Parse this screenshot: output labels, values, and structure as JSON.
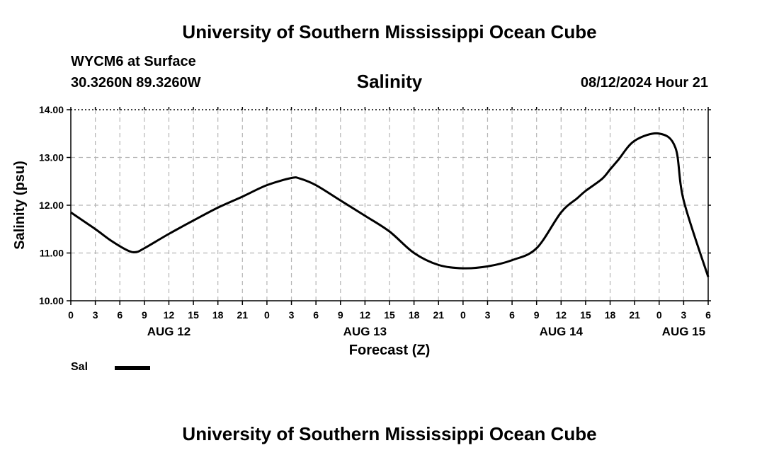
{
  "header": {
    "title_top": "University of Southern Mississippi Ocean Cube",
    "title_bottom": "University of Southern Mississippi Ocean Cube",
    "station": "WYCM6 at Surface",
    "coords": "30.3260N  89.3260W",
    "date": "08/12/2024 Hour 21"
  },
  "legend": {
    "label": "Sal",
    "color": "#000000"
  },
  "chart_data": {
    "type": "line",
    "title": "Salinity",
    "xlabel": "Forecast (Z)",
    "ylabel": "Salinity (psu)",
    "xlim": [
      0,
      78
    ],
    "ylim": [
      10.0,
      14.0
    ],
    "grid": true,
    "y_ticks": [
      10.0,
      11.0,
      12.0,
      13.0,
      14.0
    ],
    "y_tick_labels": [
      "10.00",
      "11.00",
      "12.00",
      "13.00",
      "14.00"
    ],
    "x_ticks": [
      0,
      3,
      6,
      9,
      12,
      15,
      18,
      21,
      24,
      27,
      30,
      33,
      36,
      39,
      42,
      45,
      48,
      51,
      54,
      57,
      60,
      63,
      66,
      69,
      72,
      75,
      78
    ],
    "x_tick_labels": [
      "0",
      "3",
      "6",
      "9",
      "12",
      "15",
      "18",
      "21",
      "0",
      "3",
      "6",
      "9",
      "12",
      "15",
      "18",
      "21",
      "0",
      "3",
      "6",
      "9",
      "12",
      "15",
      "18",
      "21",
      "0",
      "3",
      "6"
    ],
    "date_labels": [
      {
        "label": "AUG 12",
        "x": 12
      },
      {
        "label": "AUG 13",
        "x": 36
      },
      {
        "label": "AUG 14",
        "x": 60
      },
      {
        "label": "AUG 15",
        "x": 75
      }
    ],
    "series": [
      {
        "name": "Sal",
        "x": [
          0,
          3,
          5,
          7,
          8,
          9,
          12,
          15,
          18,
          21,
          24,
          27,
          28,
          30,
          33,
          36,
          39,
          42,
          45,
          48,
          51,
          54,
          57,
          60,
          62,
          63,
          65,
          66,
          67,
          69,
          72,
          74,
          75,
          78
        ],
        "y": [
          11.85,
          11.5,
          11.25,
          11.05,
          11.02,
          11.1,
          11.4,
          11.68,
          11.95,
          12.18,
          12.42,
          12.57,
          12.56,
          12.42,
          12.1,
          11.78,
          11.45,
          11.0,
          10.75,
          10.68,
          10.72,
          10.85,
          11.1,
          11.85,
          12.15,
          12.3,
          12.55,
          12.75,
          12.95,
          13.35,
          13.5,
          13.2,
          12.1,
          10.5
        ]
      }
    ]
  }
}
